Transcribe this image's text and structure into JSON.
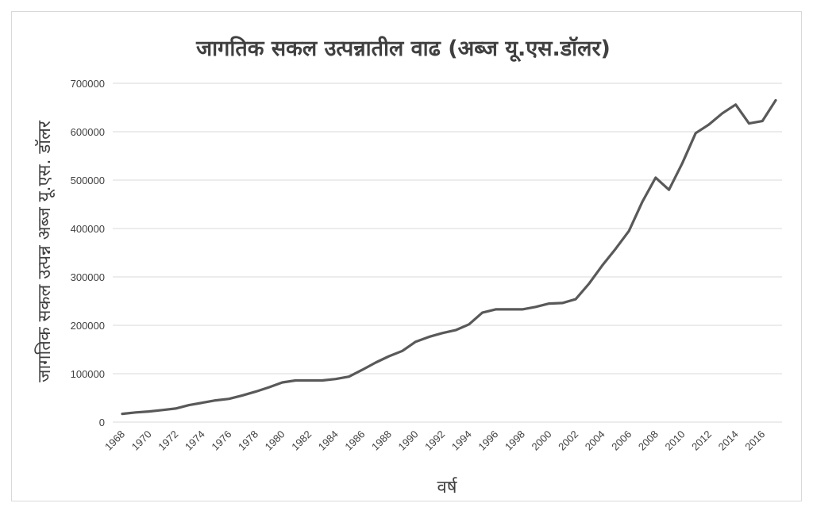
{
  "chart_data": {
    "type": "line",
    "title": "जागतिक सकल उत्पन्नातील वाढ (अब्ज यू.एस.डॉलर)",
    "xlabel": "वर्ष",
    "ylabel": "जागतिक सकल उत्पन्न अब्ज यू.एस. डॉलर",
    "ylim": [
      0,
      700000
    ],
    "yticks": [
      0,
      100000,
      200000,
      300000,
      400000,
      500000,
      600000,
      700000
    ],
    "ytick_labels": [
      "0",
      "100000",
      "200000",
      "300000",
      "400000",
      "500000",
      "600000",
      "700000"
    ],
    "xticks": [
      "1968",
      "1970",
      "1972",
      "1974",
      "1976",
      "1978",
      "1980",
      "1982",
      "1984",
      "1986",
      "1988",
      "1990",
      "1992",
      "1994",
      "1996",
      "1998",
      "2000",
      "2002",
      "2004",
      "2006",
      "2008",
      "2010",
      "2012",
      "2014",
      "2016"
    ],
    "grid": true,
    "legend": "none",
    "colors": {
      "series": "#595959",
      "grid": "#d9d9d9",
      "text": "#404040"
    },
    "series": [
      {
        "x": [
          1968,
          1969,
          1970,
          1971,
          1972,
          1973,
          1974,
          1975,
          1976,
          1977,
          1978,
          1979,
          1980,
          1981,
          1982,
          1983,
          1984,
          1985,
          1986,
          1987,
          1988,
          1989,
          1990,
          1991,
          1992,
          1993,
          1994,
          1995,
          1996,
          1997,
          1998,
          1999,
          2000,
          2001,
          2002,
          2003,
          2004,
          2005,
          2006,
          2007,
          2008,
          2009,
          2010,
          2011,
          2012,
          2013,
          2014,
          2015,
          2016,
          2017
        ],
        "values": [
          17000,
          20000,
          22000,
          25000,
          28000,
          35000,
          40000,
          45000,
          48000,
          55000,
          63000,
          72000,
          82000,
          86000,
          86000,
          86000,
          89000,
          94000,
          108000,
          123000,
          136000,
          147000,
          166000,
          176000,
          184000,
          190000,
          202000,
          226000,
          233000,
          233000,
          233000,
          238000,
          245000,
          246000,
          254000,
          286000,
          324000,
          358000,
          395000,
          455000,
          505000,
          480000,
          535000,
          597000,
          615000,
          638000,
          656000,
          617000,
          622000,
          665000
        ]
      }
    ]
  }
}
